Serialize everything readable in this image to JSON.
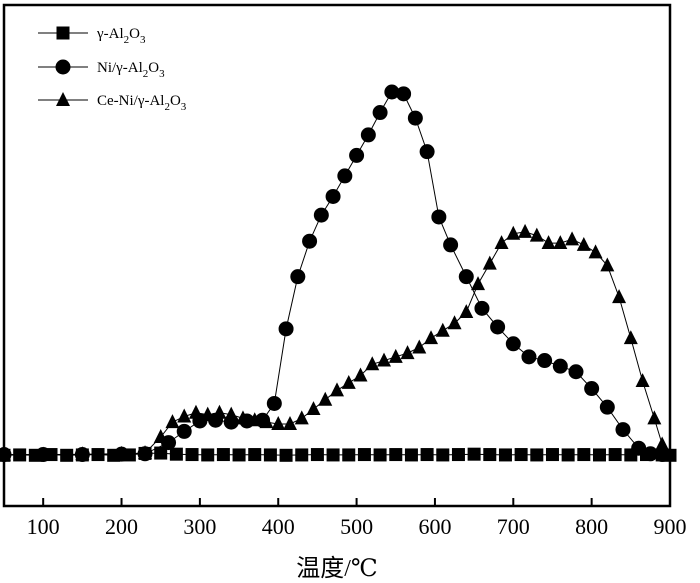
{
  "chart_data": {
    "type": "line",
    "xlabel": "温度/℃",
    "ylabel": "",
    "xlim": [
      50,
      900
    ],
    "ylim": [
      0,
      100
    ],
    "xticks": [
      100,
      200,
      300,
      400,
      500,
      600,
      700,
      800,
      900
    ],
    "grid": false,
    "legend_position": "top-left",
    "series": [
      {
        "name": "γ-Al2O3",
        "name_parts": [
          "γ-Al",
          "2",
          "O",
          "3"
        ],
        "marker": "square",
        "x": [
          50,
          70,
          90,
          110,
          130,
          150,
          170,
          190,
          210,
          230,
          250,
          270,
          290,
          310,
          330,
          350,
          370,
          390,
          410,
          430,
          450,
          470,
          490,
          510,
          530,
          550,
          570,
          590,
          610,
          630,
          650,
          670,
          690,
          710,
          730,
          750,
          770,
          790,
          810,
          830,
          850,
          870,
          890,
          900
        ],
        "values": [
          2.6,
          2.7,
          2.6,
          2.8,
          2.6,
          2.7,
          2.8,
          2.6,
          2.7,
          3.1,
          3.2,
          2.9,
          2.8,
          2.7,
          2.8,
          2.7,
          2.8,
          2.7,
          2.6,
          2.7,
          2.8,
          2.7,
          2.7,
          2.8,
          2.7,
          2.8,
          2.7,
          2.8,
          2.7,
          2.8,
          2.9,
          2.8,
          2.7,
          2.8,
          2.7,
          2.8,
          2.7,
          2.8,
          2.7,
          2.8,
          2.7,
          2.8,
          2.7,
          2.6
        ]
      },
      {
        "name": "Ni/γ-Al2O3",
        "name_parts": [
          "Ni/γ-Al",
          "2",
          "O",
          "3"
        ],
        "marker": "circle",
        "x": [
          50,
          100,
          150,
          200,
          230,
          260,
          280,
          300,
          320,
          340,
          360,
          380,
          395,
          410,
          425,
          440,
          455,
          470,
          485,
          500,
          515,
          530,
          545,
          560,
          575,
          590,
          605,
          620,
          640,
          660,
          680,
          700,
          720,
          740,
          760,
          780,
          800,
          820,
          840,
          860,
          875,
          890
        ],
        "values": [
          2.8,
          2.8,
          2.8,
          2.9,
          3.0,
          6.0,
          9.0,
          11.8,
          12.0,
          11.5,
          11.8,
          12.0,
          16.5,
          36.5,
          50.5,
          60.0,
          67.0,
          72.0,
          77.5,
          83.0,
          88.5,
          94.5,
          100.0,
          99.5,
          93.0,
          84.0,
          66.5,
          59.0,
          50.5,
          42.0,
          37.0,
          32.5,
          29.0,
          28.0,
          26.5,
          25.0,
          20.5,
          15.5,
          9.5,
          4.5,
          3.0,
          2.8
        ]
      },
      {
        "name": "Ce-Ni/γ-Al2O3",
        "name_parts": [
          "Ce-Ni/γ-Al",
          "2",
          "O",
          "3"
        ],
        "marker": "triangle",
        "x": [
          50,
          100,
          150,
          200,
          230,
          250,
          265,
          280,
          295,
          310,
          325,
          340,
          355,
          370,
          385,
          400,
          415,
          430,
          445,
          460,
          475,
          490,
          505,
          520,
          535,
          550,
          565,
          580,
          595,
          610,
          625,
          640,
          655,
          670,
          685,
          700,
          715,
          730,
          745,
          760,
          775,
          790,
          805,
          820,
          835,
          850,
          865,
          880,
          890
        ],
        "values": [
          2.8,
          2.8,
          2.9,
          3.0,
          3.2,
          7.5,
          11.5,
          13.0,
          14.0,
          13.5,
          14.0,
          13.5,
          12.5,
          12.0,
          11.5,
          11.0,
          11.0,
          12.5,
          15.0,
          17.5,
          20.0,
          22.0,
          24.0,
          27.0,
          28.0,
          29.0,
          30.0,
          31.5,
          34.0,
          36.0,
          38.0,
          41.0,
          48.5,
          54.0,
          59.5,
          62.0,
          62.5,
          61.5,
          59.5,
          59.5,
          60.5,
          59.0,
          57.0,
          53.5,
          45.0,
          34.0,
          22.5,
          12.5,
          5.5
        ]
      }
    ]
  }
}
